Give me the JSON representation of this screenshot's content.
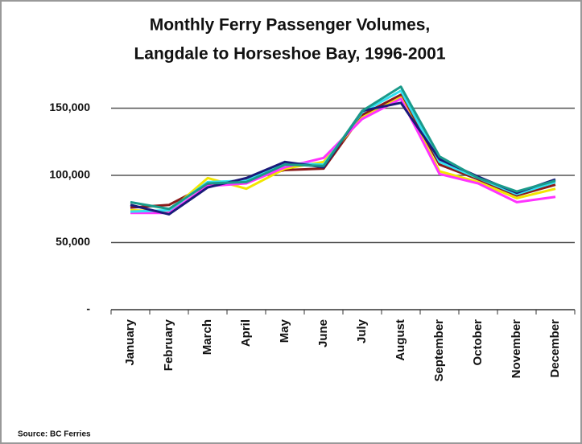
{
  "chart_data": {
    "type": "line",
    "title": "Monthly Ferry Passenger Volumes,",
    "subtitle": "Langdale to Horseshoe Bay, 1996-2001",
    "source": "Source: BC Ferries",
    "categories": [
      "January",
      "February",
      "March",
      "April",
      "May",
      "June",
      "July",
      "August",
      "September",
      "October",
      "November",
      "December"
    ],
    "series": [
      {
        "color": "#8b1a1a",
        "values": [
          76000,
          78000,
          93000,
          97000,
          104000,
          105000,
          145000,
          160000,
          108000,
          97000,
          85000,
          93000
        ]
      },
      {
        "color": "#f2e600",
        "values": [
          74000,
          73000,
          98000,
          90000,
          105000,
          110000,
          143000,
          158000,
          103000,
          95000,
          83000,
          90000
        ]
      },
      {
        "color": "#ff33ff",
        "values": [
          72000,
          72000,
          92000,
          94000,
          106000,
          113000,
          142000,
          157000,
          101000,
          94000,
          80000,
          84000
        ]
      },
      {
        "color": "#33e0f0",
        "values": [
          73000,
          74000,
          95000,
          96000,
          109000,
          108000,
          147000,
          163000,
          110000,
          98000,
          86000,
          95000
        ]
      },
      {
        "color": "#1a1a7a",
        "values": [
          78000,
          71000,
          91000,
          98000,
          110000,
          106000,
          148000,
          154000,
          112000,
          99000,
          87000,
          97000
        ]
      },
      {
        "color": "#1a9a8a",
        "values": [
          80000,
          75000,
          94000,
          95000,
          108000,
          107000,
          148000,
          166000,
          114000,
          98000,
          88000,
          96000
        ]
      }
    ],
    "ylim": [
      0,
      180000
    ],
    "yticks": [
      {
        "value": 0,
        "label": "-"
      },
      {
        "value": 50000,
        "label": "50,000"
      },
      {
        "value": 100000,
        "label": "100,000"
      },
      {
        "value": 150000,
        "label": "150,000"
      }
    ],
    "grid": true
  }
}
